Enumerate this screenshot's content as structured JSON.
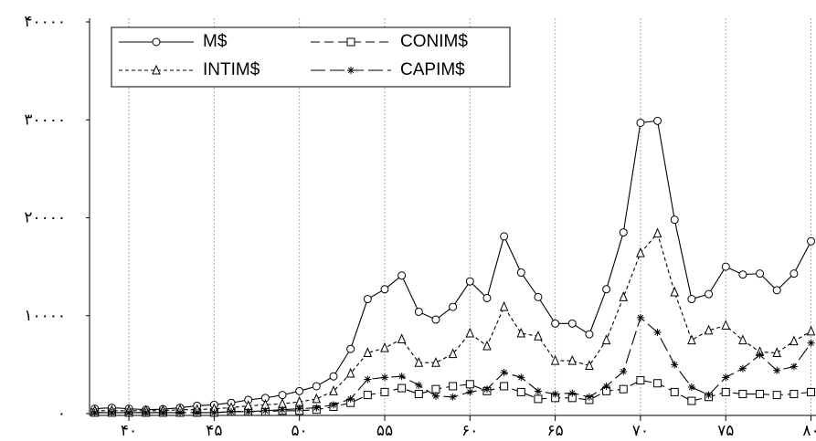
{
  "chart_data": {
    "type": "line",
    "x": [
      38,
      39,
      40,
      41,
      42,
      43,
      44,
      45,
      46,
      47,
      48,
      49,
      50,
      51,
      52,
      53,
      54,
      55,
      56,
      57,
      58,
      59,
      60,
      61,
      62,
      63,
      64,
      65,
      66,
      67,
      68,
      69,
      70,
      71,
      72,
      73,
      74,
      75,
      76,
      77,
      78,
      79,
      80
    ],
    "series": [
      {
        "name": "M$",
        "color": "#000000",
        "marker": "circle",
        "dash": "solid",
        "values": [
          500,
          600,
          500,
          400,
          450,
          600,
          800,
          900,
          1100,
          1400,
          1600,
          1900,
          2300,
          2800,
          3800,
          6600,
          11700,
          12700,
          14100,
          10400,
          9600,
          10900,
          13500,
          11800,
          18100,
          14400,
          11900,
          9200,
          9200,
          8100,
          12700,
          18500,
          29700,
          29900,
          19800,
          11700,
          12200,
          15000,
          14200,
          14300,
          12600,
          14300,
          17600
        ]
      },
      {
        "name": "CONIM$",
        "color": "#000000",
        "marker": "square",
        "dash": "long",
        "values": [
          100,
          100,
          100,
          100,
          100,
          100,
          100,
          100,
          200,
          200,
          200,
          300,
          300,
          400,
          700,
          1100,
          1900,
          2200,
          2600,
          2000,
          2500,
          2800,
          3000,
          2300,
          2800,
          2200,
          1500,
          1600,
          1600,
          1400,
          2300,
          2500,
          3400,
          3100,
          2200,
          1300,
          1700,
          2200,
          2000,
          2000,
          1900,
          2000,
          2200
        ]
      },
      {
        "name": "INTIM$",
        "color": "#000000",
        "marker": "triangle",
        "dash": "short",
        "values": [
          300,
          300,
          300,
          300,
          300,
          400,
          400,
          500,
          600,
          800,
          900,
          1000,
          1200,
          1500,
          2300,
          4100,
          6200,
          6700,
          7600,
          5200,
          5200,
          6100,
          8200,
          6900,
          10900,
          8200,
          7900,
          5400,
          5400,
          4900,
          7500,
          11900,
          16400,
          18400,
          12400,
          7500,
          8500,
          9000,
          7500,
          6300,
          6200,
          7400,
          8400
        ]
      },
      {
        "name": "CAPIM$",
        "color": "#000000",
        "marker": "star",
        "dash": "longer",
        "values": [
          100,
          100,
          100,
          100,
          100,
          100,
          100,
          100,
          200,
          200,
          300,
          400,
          500,
          600,
          900,
          1500,
          3500,
          3700,
          3800,
          2900,
          1800,
          1700,
          2200,
          2500,
          4200,
          3700,
          2300,
          2000,
          2100,
          1700,
          2800,
          4300,
          9800,
          8300,
          5000,
          2700,
          1900,
          3700,
          4600,
          6000,
          4400,
          4800,
          7200
        ]
      }
    ],
    "xlim": [
      37.8,
      80.4
    ],
    "xticks": [
      {
        "value": 40,
        "label": "۴۰"
      },
      {
        "value": 45,
        "label": "۴۵"
      },
      {
        "value": 50,
        "label": "۵۰"
      },
      {
        "value": 55,
        "label": "۵۵"
      },
      {
        "value": 60,
        "label": "۶۰"
      },
      {
        "value": 65,
        "label": "۶۵"
      },
      {
        "value": 70,
        "label": "۷۰"
      },
      {
        "value": 75,
        "label": "۷۵"
      },
      {
        "value": 80,
        "label": "۸۰"
      }
    ],
    "ylim": [
      0,
      40000
    ],
    "yticks": [
      {
        "value": 0,
        "label": "۰"
      },
      {
        "value": 10000,
        "label": "۱۰۰۰۰"
      },
      {
        "value": 20000,
        "label": "۲۰۰۰۰"
      },
      {
        "value": 30000,
        "label": "۳۰۰۰۰"
      },
      {
        "value": 40000,
        "label": "۴۰۰۰۰"
      }
    ],
    "grid": "x",
    "legend": "upper left"
  }
}
